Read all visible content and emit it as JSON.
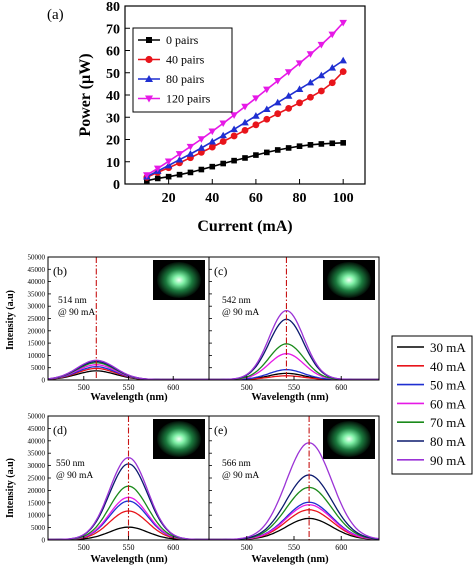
{
  "top_chart": {
    "panel_label": "(a)",
    "xlabel": "Current (mA)",
    "ylabel": "Power (µW)",
    "xlim": [
      0,
      110
    ],
    "ylim": [
      0,
      80
    ],
    "xticks": [
      20,
      40,
      60,
      80,
      100
    ],
    "yticks": [
      0,
      10,
      20,
      30,
      40,
      50,
      60,
      70,
      80
    ],
    "series": [
      {
        "name": "0 pairs",
        "color": "#000000",
        "marker": "square",
        "values": [
          1.5,
          2.5,
          3.3,
          4.2,
          5.2,
          6.5,
          7.8,
          9.2,
          10.5,
          11.7,
          13,
          14.2,
          15.3,
          16.2,
          17,
          17.6,
          18,
          18.3,
          18.5
        ]
      },
      {
        "name": "40 pairs",
        "color": "#e8141b",
        "marker": "circle",
        "values": [
          3,
          5.2,
          7.3,
          9.5,
          11.8,
          14.2,
          16.6,
          19.1,
          21.6,
          24.1,
          26.6,
          29.1,
          31.6,
          34,
          36.5,
          39,
          41.8,
          45.5,
          50.5
        ]
      },
      {
        "name": "80 pairs",
        "color": "#1f2fd1",
        "marker": "triangle-up",
        "values": [
          3.3,
          5.8,
          8.3,
          10.9,
          13.5,
          16.2,
          19,
          21.8,
          24.6,
          27.6,
          30.6,
          33.6,
          36.6,
          39.6,
          42.6,
          45.6,
          48.8,
          52.2,
          55.5
        ]
      },
      {
        "name": "120 pairs",
        "color": "#e619e6",
        "marker": "triangle-down",
        "values": [
          4,
          7,
          10.2,
          13.5,
          16.8,
          20.2,
          23.7,
          27.3,
          31,
          34.8,
          38.6,
          42.5,
          46.4,
          50.3,
          54.3,
          58.4,
          62.6,
          67.2,
          72.5
        ]
      }
    ],
    "x": [
      10,
      15,
      20,
      25,
      30,
      35,
      40,
      45,
      50,
      55,
      60,
      65,
      70,
      75,
      80,
      85,
      90,
      95,
      100
    ]
  },
  "spectra": {
    "xlabel": "Wavelength (nm)",
    "ylabel": "Intensity (a.u)",
    "xlim": [
      460,
      640
    ],
    "ylim": [
      0,
      50000
    ],
    "xticks": [
      500,
      550,
      600
    ],
    "yticks_left": [
      0,
      5000,
      10000,
      15000,
      20000,
      25000,
      30000,
      35000,
      40000,
      45000,
      50000
    ],
    "legend": [
      {
        "name": "30 mA",
        "color": "#000000"
      },
      {
        "name": "40 mA",
        "color": "#e8141b"
      },
      {
        "name": "50 mA",
        "color": "#1f2fd1"
      },
      {
        "name": "60 mA",
        "color": "#e619e6"
      },
      {
        "name": "70 mA",
        "color": "#1a8a1a"
      },
      {
        "name": "80 mA",
        "color": "#0b1a6e"
      },
      {
        "name": "90 mA",
        "color": "#9b33d6"
      }
    ],
    "panels": [
      {
        "label": "(b)",
        "note_line1": "514 nm",
        "note_line2": "@ 90 mA",
        "peak": 514,
        "width": 30,
        "amplitudes": [
          3500,
          4500,
          5200,
          6000,
          6800,
          7300,
          7800
        ]
      },
      {
        "label": "(c)",
        "note_line1": "542 nm",
        "note_line2": "@ 90 mA",
        "peak": 542,
        "width": 26,
        "amplitudes": [
          2500,
          1500,
          4000,
          10500,
          14500,
          24500,
          28000
        ]
      },
      {
        "label": "(d)",
        "note_line1": "550 nm",
        "note_line2": "@ 90 mA",
        "peak": 550,
        "width": 30,
        "amplitudes": [
          5000,
          11500,
          15500,
          17000,
          21500,
          30500,
          33000
        ]
      },
      {
        "label": "(e)",
        "note_line1": "566 nm",
        "note_line2": "@ 90 mA",
        "peak": 566,
        "width": 34,
        "amplitudes": [
          8500,
          12000,
          15000,
          14000,
          21000,
          26000,
          39000
        ]
      }
    ]
  }
}
